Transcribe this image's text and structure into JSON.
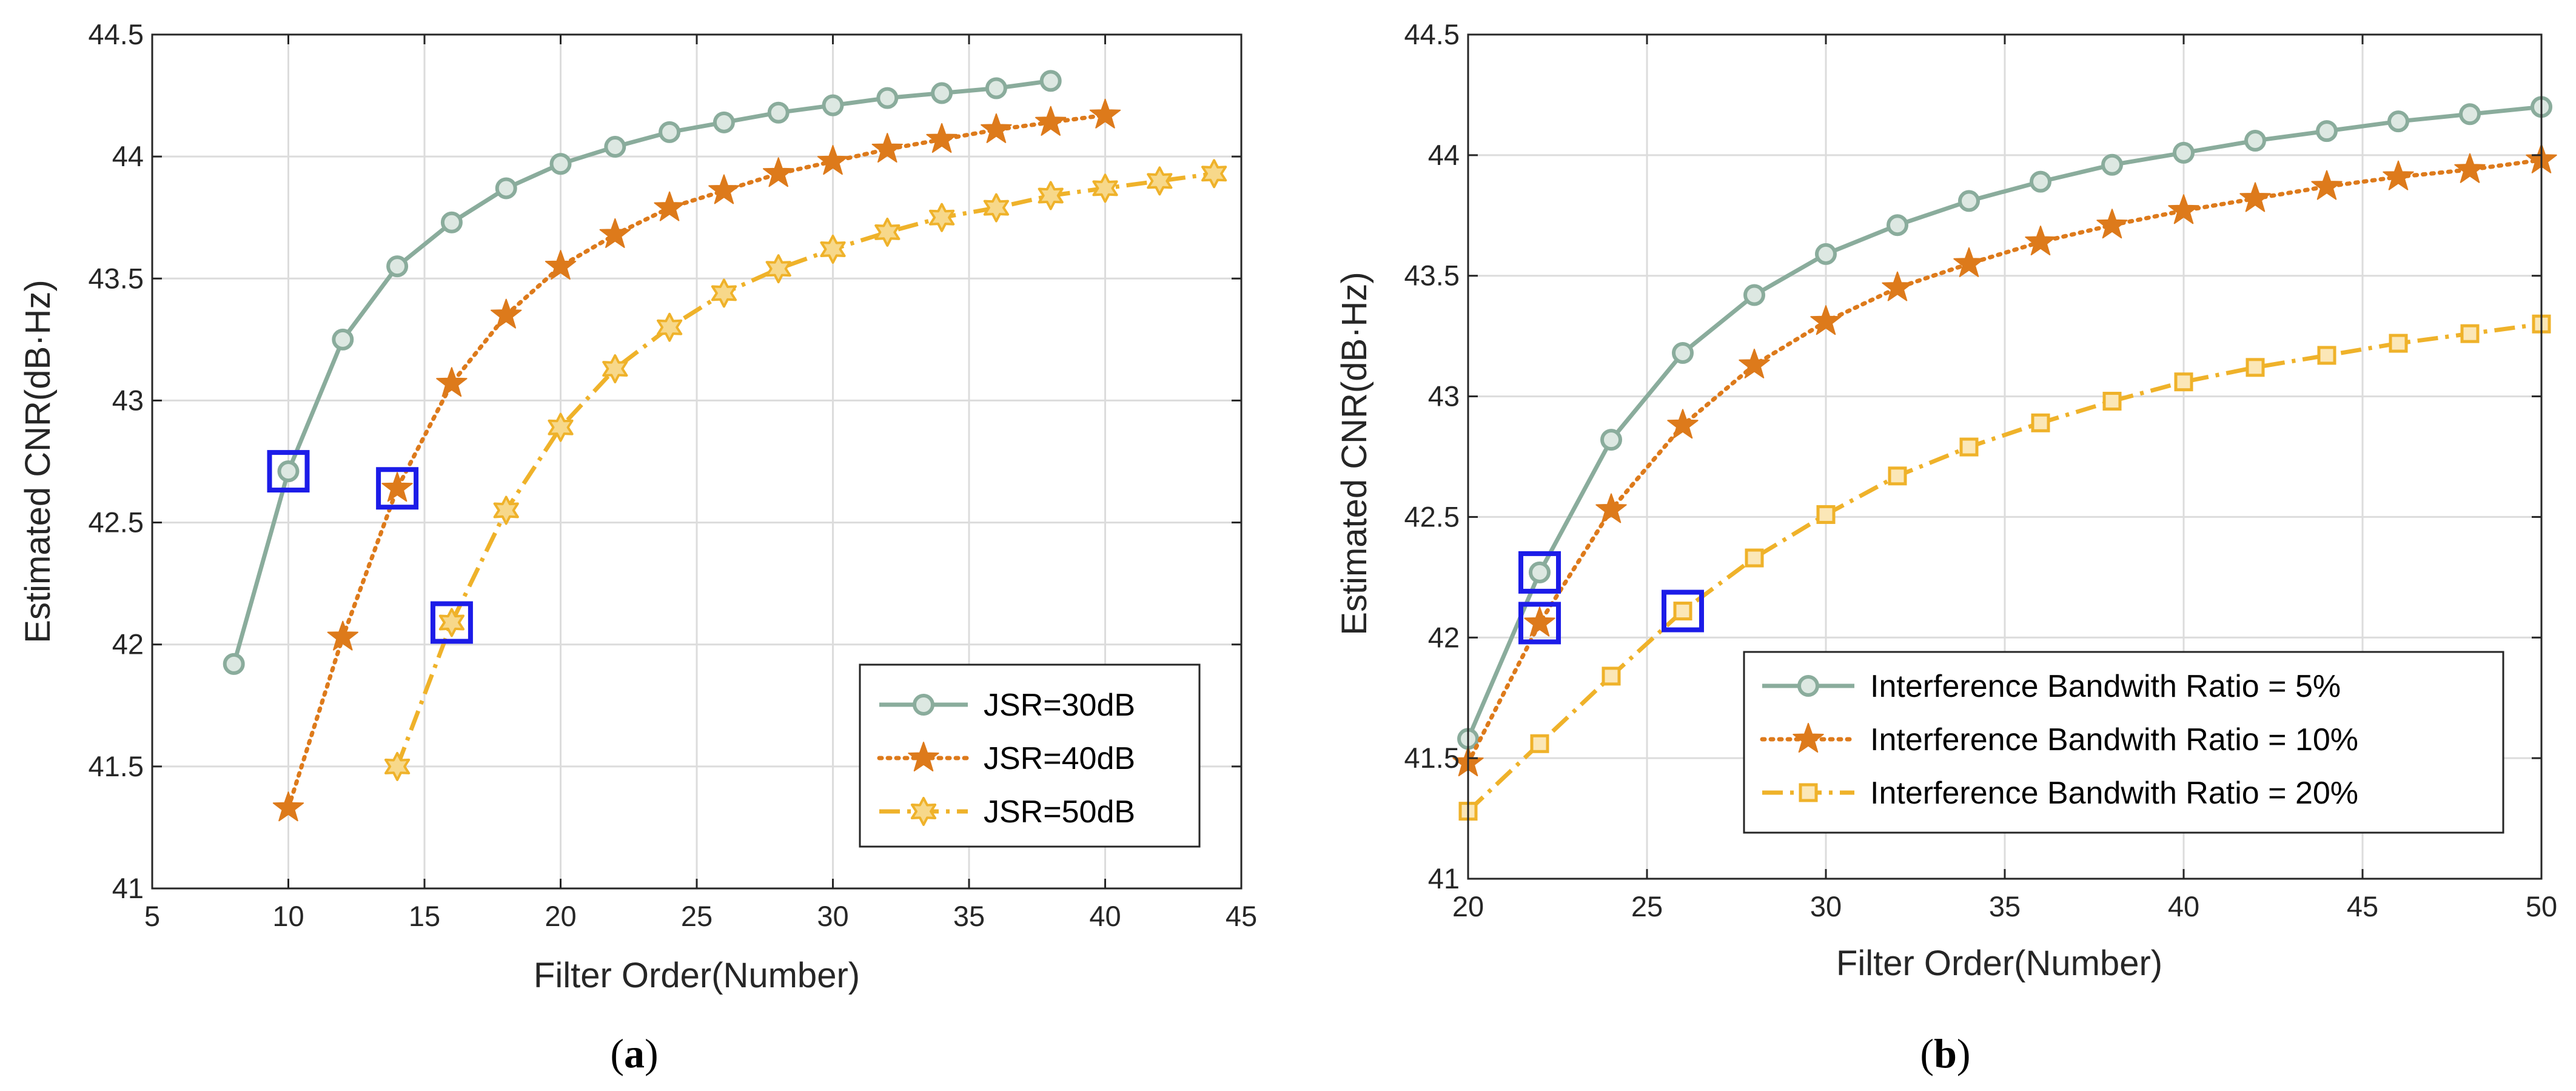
{
  "colors": {
    "series_green": "#8aac9c",
    "series_orange": "#dd7a1b",
    "series_gold": "#efb22a",
    "highlight_box": "#1c1ce8",
    "axis": "#262626",
    "grid": "#dcdcdc"
  },
  "chart_data": [
    {
      "id": "a",
      "type": "line",
      "caption_letter": "a",
      "title": "",
      "xlabel": "Filter Order(Number)",
      "ylabel": "Estimated CNR(dB·Hz)",
      "xlim": [
        5,
        45
      ],
      "ylim": [
        41,
        44.5
      ],
      "xticks": [
        5,
        10,
        15,
        20,
        25,
        30,
        35,
        40,
        45
      ],
      "yticks": [
        41,
        41.5,
        42,
        42.5,
        43,
        43.5,
        44,
        44.5
      ],
      "xtick_labels": [
        "5",
        "10",
        "15",
        "20",
        "25",
        "30",
        "35",
        "40",
        "45"
      ],
      "ytick_labels": [
        "41",
        "41.5",
        "42",
        "42.5",
        "43",
        "43.5",
        "44",
        "44.5"
      ],
      "grid": true,
      "legend_position": "bottom-right",
      "series": [
        {
          "name": "JSR=30dB",
          "color": "#8aac9c",
          "line_style": "solid",
          "marker": "circle",
          "x": [
            8,
            10,
            12,
            14,
            16,
            18,
            20,
            22,
            24,
            26,
            28,
            30,
            32,
            34,
            36,
            38
          ],
          "y": [
            41.92,
            42.71,
            43.25,
            43.55,
            43.73,
            43.87,
            43.97,
            44.04,
            44.1,
            44.14,
            44.18,
            44.21,
            44.24,
            44.26,
            44.28,
            44.31
          ]
        },
        {
          "name": "JSR=40dB",
          "color": "#dd7a1b",
          "line_style": "dotted",
          "marker": "star",
          "x": [
            10,
            12,
            14,
            16,
            18,
            20,
            22,
            24,
            26,
            28,
            30,
            32,
            34,
            36,
            38,
            40
          ],
          "y": [
            41.33,
            42.03,
            42.64,
            43.07,
            43.35,
            43.55,
            43.68,
            43.79,
            43.86,
            43.93,
            43.98,
            44.03,
            44.07,
            44.11,
            44.14,
            44.17
          ]
        },
        {
          "name": "JSR=50dB",
          "color": "#efb22a",
          "line_style": "dashdot",
          "marker": "hexagram",
          "x": [
            14,
            16,
            18,
            20,
            22,
            24,
            26,
            28,
            30,
            32,
            34,
            36,
            38,
            40,
            42,
            44
          ],
          "y": [
            41.5,
            42.09,
            42.55,
            42.89,
            43.13,
            43.3,
            43.44,
            43.54,
            43.62,
            43.69,
            43.75,
            43.79,
            43.84,
            43.87,
            43.9,
            43.93
          ]
        }
      ],
      "highlights": [
        {
          "x": 10,
          "y": 42.71
        },
        {
          "x": 14,
          "y": 42.64
        },
        {
          "x": 16,
          "y": 42.09
        }
      ]
    },
    {
      "id": "b",
      "type": "line",
      "caption_letter": "b",
      "title": "",
      "xlabel": "Filter Order(Number)",
      "ylabel": "Estimated CNR(dB·Hz)",
      "xlim": [
        20,
        50
      ],
      "ylim": [
        41,
        44.5
      ],
      "xticks": [
        20,
        25,
        30,
        35,
        40,
        45,
        50
      ],
      "yticks": [
        41,
        41.5,
        42,
        42.5,
        43,
        43.5,
        44,
        44.5
      ],
      "xtick_labels": [
        "20",
        "25",
        "30",
        "35",
        "40",
        "45",
        "50"
      ],
      "ytick_labels": [
        "41",
        "41.5",
        "42",
        "42.5",
        "43",
        "43.5",
        "44",
        "44.5"
      ],
      "grid": true,
      "legend_position": "bottom-right",
      "series": [
        {
          "name": "Interference Bandwith Ratio = 5%",
          "color": "#8aac9c",
          "line_style": "solid",
          "marker": "circle",
          "x": [
            20,
            22,
            24,
            26,
            28,
            30,
            32,
            34,
            36,
            38,
            40,
            42,
            44,
            46,
            48,
            50
          ],
          "y": [
            41.58,
            42.27,
            42.82,
            43.18,
            43.42,
            43.59,
            43.71,
            43.81,
            43.89,
            43.96,
            44.01,
            44.06,
            44.1,
            44.14,
            44.17,
            44.2
          ]
        },
        {
          "name": "Interference Bandwith Ratio = 10%",
          "color": "#dd7a1b",
          "line_style": "dotted",
          "marker": "star",
          "x": [
            20,
            22,
            24,
            26,
            28,
            30,
            32,
            34,
            36,
            38,
            40,
            42,
            44,
            46,
            48,
            50
          ],
          "y": [
            41.48,
            42.06,
            42.53,
            42.88,
            43.13,
            43.31,
            43.45,
            43.55,
            43.64,
            43.71,
            43.77,
            43.82,
            43.87,
            43.91,
            43.94,
            43.98
          ]
        },
        {
          "name": "Interference Bandwith Ratio = 20%",
          "color": "#efb22a",
          "line_style": "dashdot",
          "marker": "square",
          "x": [
            20,
            22,
            24,
            26,
            28,
            30,
            32,
            34,
            36,
            38,
            40,
            42,
            44,
            46,
            48,
            50
          ],
          "y": [
            41.28,
            41.56,
            41.84,
            42.11,
            42.33,
            42.51,
            42.67,
            42.79,
            42.89,
            42.98,
            43.06,
            43.12,
            43.17,
            43.22,
            43.26,
            43.3
          ]
        }
      ],
      "highlights": [
        {
          "x": 22,
          "y": 42.27
        },
        {
          "x": 22,
          "y": 42.06
        },
        {
          "x": 26,
          "y": 42.11
        }
      ]
    }
  ]
}
